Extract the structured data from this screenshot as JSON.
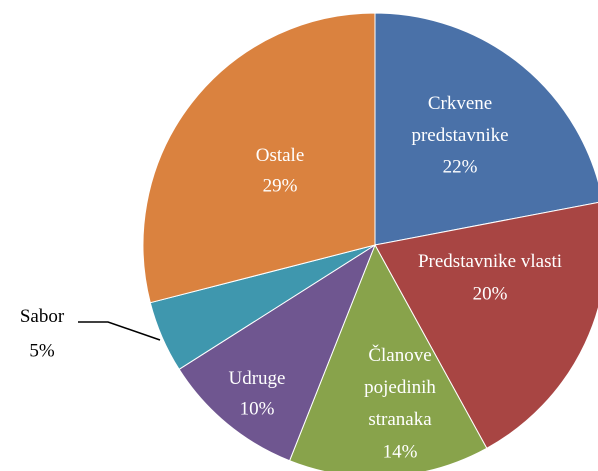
{
  "chart_data": {
    "type": "pie",
    "categories": [
      "Crkvene predstavnike",
      "Predstavnike vlasti",
      "Članove pojedinih stranaka",
      "Udruge",
      "Sabor",
      "Ostale"
    ],
    "values": [
      22,
      20,
      14,
      10,
      5,
      29
    ],
    "value_labels": [
      "22%",
      "20%",
      "14%",
      "10%",
      "5%",
      "29%"
    ],
    "colors": [
      "#4a71a8",
      "#a84543",
      "#88a34b",
      "#6f5690",
      "#3f97ae",
      "#da823f"
    ]
  }
}
